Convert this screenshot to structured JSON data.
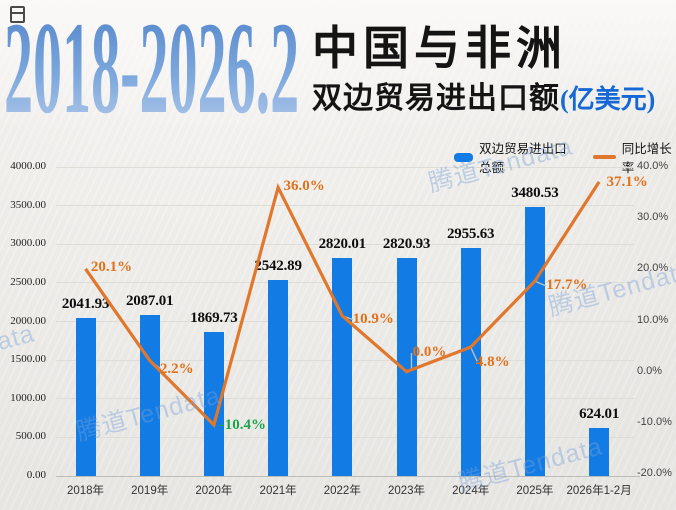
{
  "header": {
    "range": "2018-2026.2",
    "title_line1": "中国与非洲",
    "title_line2": "双边贸易进出口额",
    "unit": "(亿美元)"
  },
  "legend": {
    "bar_label": "双边贸易进出口总额",
    "line_label": "同比增长率"
  },
  "watermark": "腾道Tendata",
  "colors": {
    "bar": "#127be4",
    "line": "#e0772c",
    "pct_positive": "#e2711c",
    "pct_negative": "#1ea34c",
    "value_label": "#0d0d0d",
    "title_unit_blue": "#1668d6",
    "range_gradient_top": "#4d80c8",
    "range_gradient_bottom": "#bccfec"
  },
  "chart_data": {
    "type": "bar+line combo",
    "categories": [
      "2018年",
      "2019年",
      "2020年",
      "2021年",
      "2022年",
      "2023年",
      "2024年",
      "2025年",
      "2026年1-2月"
    ],
    "series": [
      {
        "name": "双边贸易进出口总额",
        "type": "bar",
        "axis": "left",
        "values": [
          2041.93,
          2087.01,
          1869.73,
          2542.89,
          2820.01,
          2820.93,
          2955.63,
          3480.53,
          624.01
        ],
        "value_labels": [
          "2041.93",
          "2087.01",
          "1869.73",
          "2542.89",
          "2820.01",
          "2820.93",
          "2955.63",
          "3480.53",
          "624.01"
        ]
      },
      {
        "name": "同比增长率",
        "type": "line",
        "axis": "right",
        "values": [
          20.1,
          2.2,
          -10.4,
          36.0,
          10.9,
          0.0,
          4.8,
          17.7,
          37.1
        ],
        "point_labels": [
          {
            "text": "20.1%",
            "dx": 26,
            "dy": -1,
            "negative": false
          },
          {
            "text": "2.2%",
            "dx": 27,
            "dy": 10,
            "negative": false
          },
          {
            "text": "-10.4%",
            "dx": 29,
            "dy": 1,
            "negative": true
          },
          {
            "text": "36.0%",
            "dx": 26,
            "dy": 0,
            "negative": false
          },
          {
            "text": "10.9%",
            "dx": 31,
            "dy": 4,
            "negative": false
          },
          {
            "text": "0.0%",
            "dx": 23,
            "dy": -19,
            "negative": false
          },
          {
            "text": "4.8%",
            "dx": 22,
            "dy": 16,
            "negative": false
          },
          {
            "text": "17.7%",
            "dx": 32,
            "dy": 5,
            "negative": false
          },
          {
            "text": "37.1%",
            "dx": 28,
            "dy": 1,
            "negative": false
          }
        ]
      }
    ],
    "left_axis": {
      "min": 0,
      "max": 4000,
      "ticks": [
        "4000.00",
        "3500.00",
        "3000.00",
        "2500.00",
        "2000.00",
        "1500.00",
        "1000.00",
        "500.00",
        "0.00"
      ]
    },
    "right_axis": {
      "min": -20,
      "max": 40,
      "ticks": [
        "40.0%",
        "30.0%",
        "20.0%",
        "10.0%",
        "0.0%",
        "-10.0%",
        "-20.0%"
      ]
    },
    "grid": true,
    "legend_position": "top-right"
  }
}
